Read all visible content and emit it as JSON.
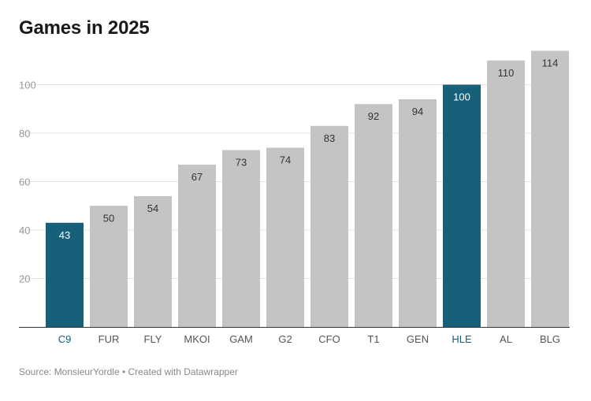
{
  "colors": {
    "highlight": "#17607a",
    "default_bar": "#c4c4c4",
    "gridline": "#e3e3e3",
    "axis_text": "#999999",
    "label_on_light": "#333333",
    "label_on_dark": "#ffffff"
  },
  "chart_data": {
    "type": "bar",
    "title": "Games in 2025",
    "xlabel": "",
    "ylabel": "",
    "ylim": [
      0,
      114
    ],
    "yticks": [
      20,
      40,
      60,
      80,
      100
    ],
    "grid": true,
    "categories": [
      "C9",
      "FUR",
      "FLY",
      "MKOI",
      "GAM",
      "G2",
      "CFO",
      "T1",
      "GEN",
      "HLE",
      "AL",
      "BLG"
    ],
    "values": [
      43,
      50,
      54,
      67,
      73,
      74,
      83,
      92,
      94,
      100,
      110,
      114
    ],
    "highlighted": [
      "C9",
      "HLE"
    ]
  },
  "footer": {
    "source": "Source: MonsieurYordle • Created with Datawrapper"
  }
}
